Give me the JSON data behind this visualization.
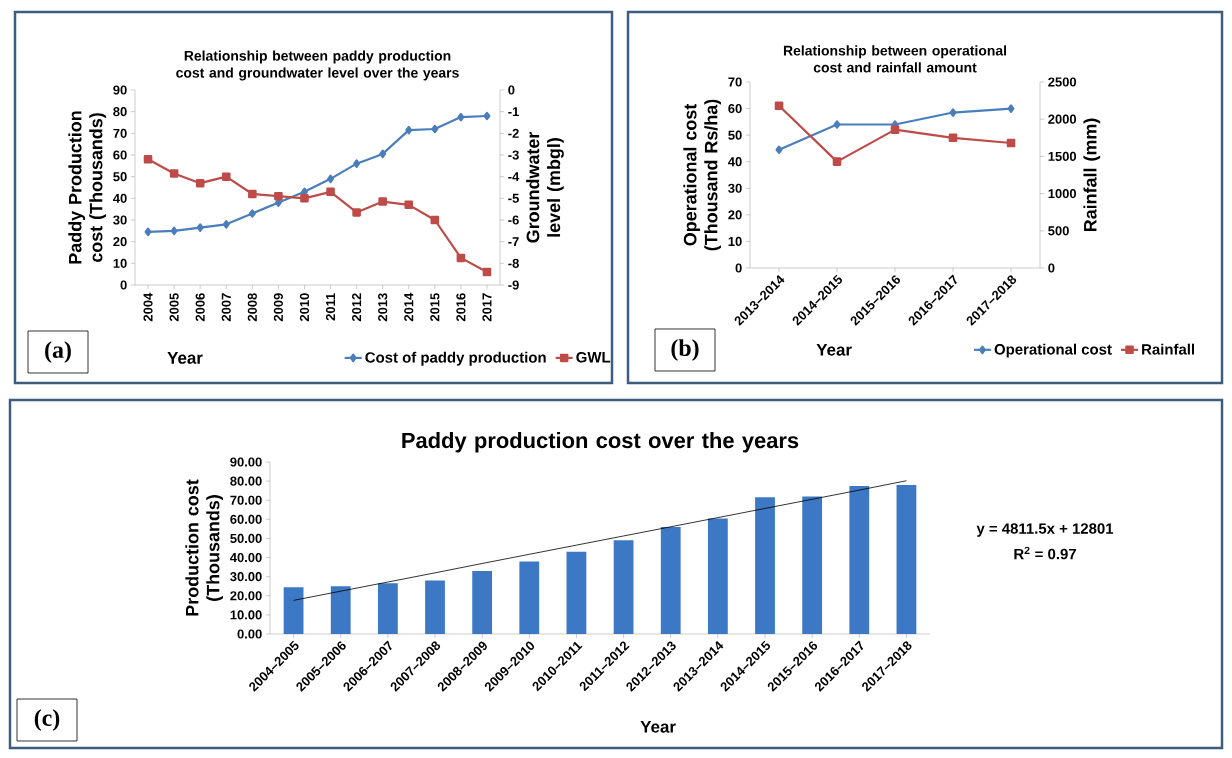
{
  "chart_data": [
    {
      "type": "line",
      "title": "Relationship between paddy production cost and groundwater level over the years",
      "xlabel": "Year",
      "ylabel": "Paddy Production cost (Thousands)",
      "y2label": "Groundwater level (mbgl)",
      "categories": [
        "2004",
        "2005",
        "2006",
        "2007",
        "2008",
        "2009",
        "2010",
        "2011",
        "2012",
        "2013",
        "2014",
        "2015",
        "2016",
        "2017"
      ],
      "series": [
        {
          "name": "Cost of paddy production",
          "color": "#4a7ebb",
          "marker": "diamond",
          "values": [
            24.5,
            25,
            26.5,
            28,
            33,
            38,
            43,
            49,
            56,
            60.5,
            71.5,
            72,
            77.5,
            78
          ]
        },
        {
          "name": "GWL",
          "color": "#be4b48",
          "marker": "square",
          "axis": "y2",
          "values": [
            -3.2,
            -3.85,
            -4.3,
            -4.0,
            -4.8,
            -4.9,
            -5.0,
            -4.7,
            -5.65,
            -5.15,
            -5.3,
            -6.0,
            -7.75,
            -8.4
          ]
        }
      ],
      "ylim": [
        0,
        90
      ],
      "yticks": [
        0,
        10,
        20,
        30,
        40,
        50,
        60,
        70,
        80,
        90
      ],
      "y2lim": [
        -9,
        0
      ],
      "y2ticks": [
        -9,
        -8,
        -7,
        -6,
        -5,
        -4,
        -3,
        -2,
        -1,
        0
      ],
      "legend": "bottom",
      "annotations": [
        "(a)"
      ]
    },
    {
      "type": "line",
      "title": "Relationship between operational cost and rainfall amount",
      "xlabel": "Year",
      "ylabel": "Operational cost (Thousand Rs/ha)",
      "y2label": "Rainfall (mm)",
      "categories": [
        "2013–2014",
        "2014–2015",
        "2015–2016",
        "2016–2017",
        "2017–2018"
      ],
      "series": [
        {
          "name": "Operational cost",
          "color": "#4a7ebb",
          "marker": "diamond",
          "values": [
            44.5,
            54,
            54,
            58.5,
            60
          ]
        },
        {
          "name": "Rainfall",
          "color": "#be4b48",
          "marker": "square",
          "axis": "y2",
          "values": [
            2180,
            1430,
            1860,
            1750,
            1680
          ]
        }
      ],
      "ylim": [
        0,
        70
      ],
      "yticks": [
        0,
        10,
        20,
        30,
        40,
        50,
        60,
        70
      ],
      "y2lim": [
        0,
        2500
      ],
      "y2ticks": [
        0,
        500,
        1000,
        1500,
        2000,
        2500
      ],
      "legend": "bottom",
      "annotations": [
        "(b)"
      ]
    },
    {
      "type": "bar",
      "title": "Paddy production cost over the years",
      "xlabel": "Year",
      "ylabel": "Production cost (Thousands)",
      "categories": [
        "2004–2005",
        "2005–2006",
        "2006–2007",
        "2007–2008",
        "2008–2009",
        "2009–2010",
        "2010–2011",
        "2011–2012",
        "2012–2013",
        "2013–2014",
        "2014–2015",
        "2015–2016",
        "2016–2017",
        "2017–2018"
      ],
      "series": [
        {
          "color": "#3c78c3",
          "values": [
            24.5,
            25,
            26.5,
            28,
            33,
            38,
            43,
            49,
            56,
            60.5,
            71.5,
            72,
            77.5,
            78
          ]
        },
        {
          "type": "line",
          "color": "#000000",
          "marker": "none",
          "values": [
            17.6,
            22.4,
            27.2,
            32.0,
            36.9,
            41.7,
            46.5,
            51.3,
            56.1,
            60.9,
            65.7,
            70.5,
            75.3,
            80.2
          ]
        }
      ],
      "ylim": [
        0,
        90
      ],
      "yticks": [
        {
          "value": 0,
          "label": "0.00"
        },
        {
          "value": 10,
          "label": "10.00"
        },
        {
          "value": 20,
          "label": "20.00"
        },
        {
          "value": 30,
          "label": "30.00"
        },
        {
          "value": 40,
          "label": "40.00"
        },
        {
          "value": 50,
          "label": "50.00"
        },
        {
          "value": 60,
          "label": "60.00"
        },
        {
          "value": 70,
          "label": "70.00"
        },
        {
          "value": 80,
          "label": "80.00"
        },
        {
          "value": 90,
          "label": "90.00"
        }
      ],
      "annotations": [
        "y = 4811.5x + 12801",
        "R$^{2}$ = 0.97",
        "(c)"
      ]
    }
  ]
}
